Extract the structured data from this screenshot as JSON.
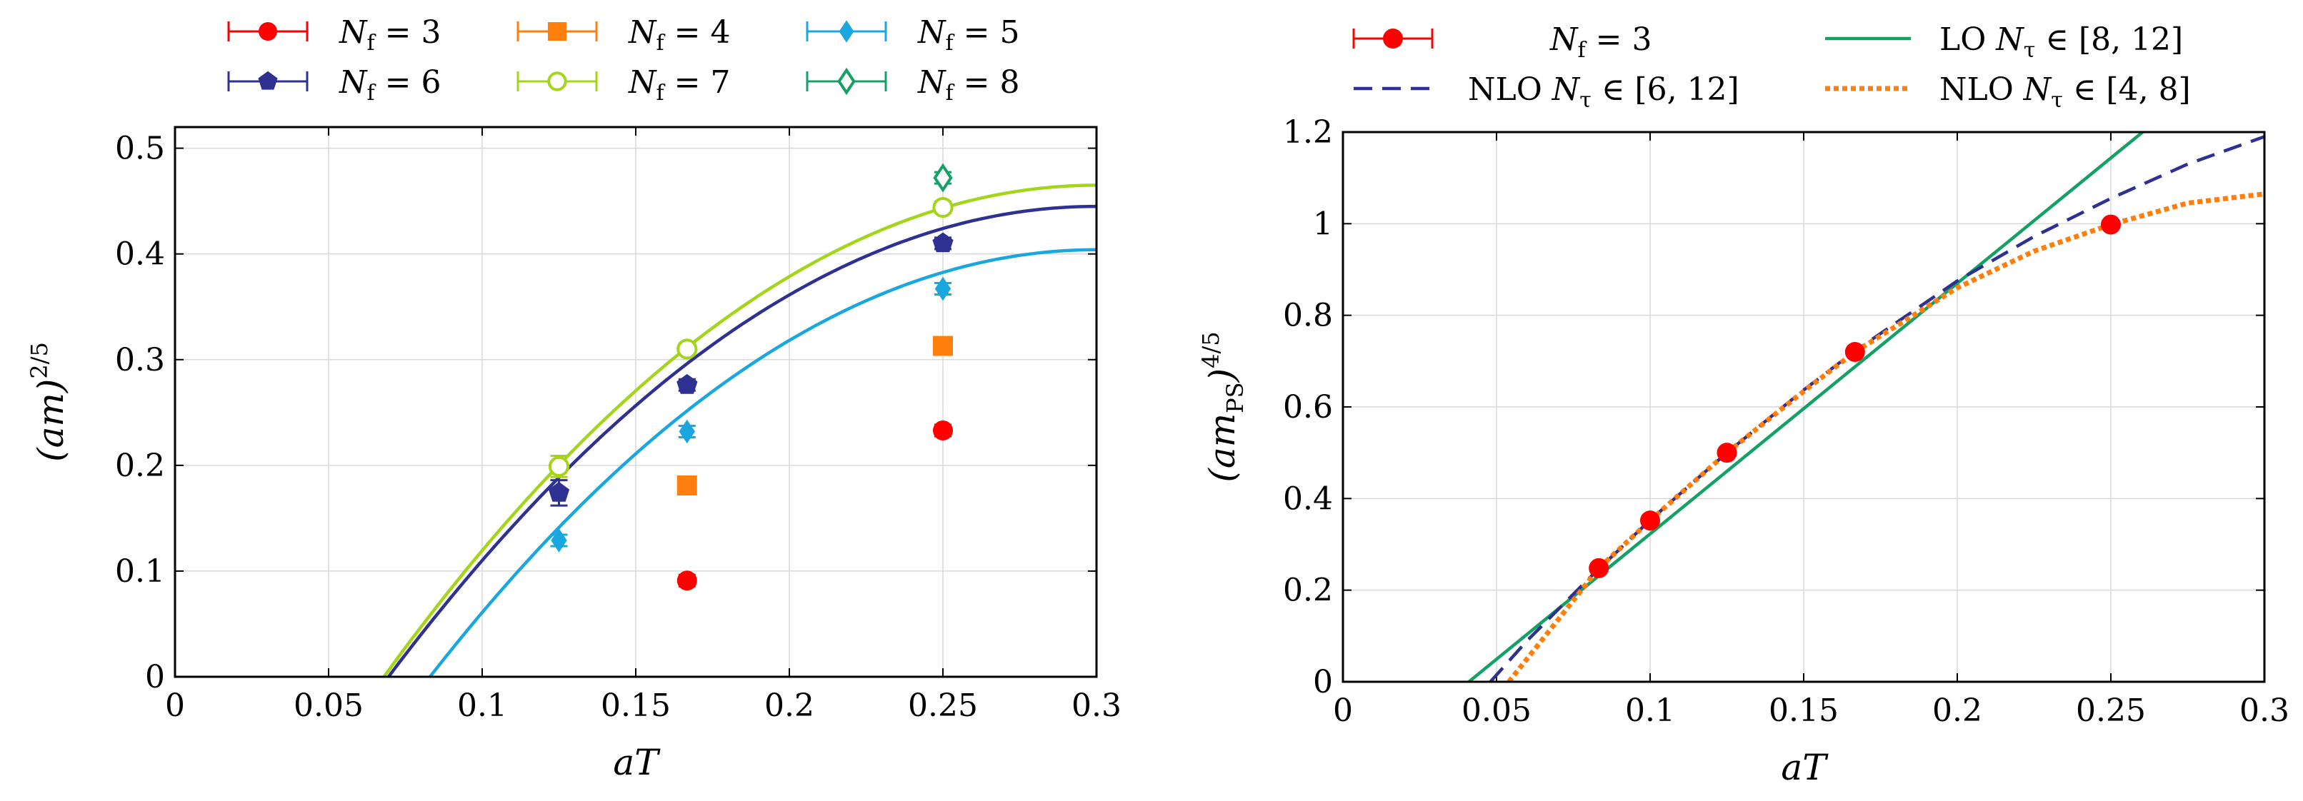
{
  "chart_data": [
    {
      "type": "scatter",
      "panel": "left",
      "xlabel": "aT",
      "ylabel": "(am)^{2/5}",
      "xlim": [
        0,
        0.3
      ],
      "ylim": [
        0,
        0.52
      ],
      "xticks": [
        0,
        0.05,
        0.1,
        0.15,
        0.2,
        0.25,
        0.3
      ],
      "xtick_labels": [
        "0",
        "0.05",
        "0.1",
        "0.15",
        "0.2",
        "0.25",
        "0.3"
      ],
      "yticks": [
        0,
        0.1,
        0.2,
        0.3,
        0.4,
        0.5
      ],
      "ytick_labels": [
        "0",
        "0.1",
        "0.2",
        "0.3",
        "0.4",
        "0.5"
      ],
      "legend": "top-outside, 3 columns",
      "series": [
        {
          "name": "N_f = 3",
          "label_main": "N",
          "label_sub": "f",
          "label_tail": " = 3",
          "color": "#ff0000",
          "marker": "circle",
          "x": [
            0.1667,
            0.25
          ],
          "y": [
            0.091,
            0.233
          ],
          "err": [
            0.004,
            0.004
          ]
        },
        {
          "name": "N_f = 4",
          "label_main": "N",
          "label_sub": "f",
          "label_tail": " = 4",
          "color": "#ff7f0e",
          "marker": "square",
          "x": [
            0.1667,
            0.25
          ],
          "y": [
            0.181,
            0.313
          ],
          "err": [
            0.004,
            0.004
          ]
        },
        {
          "name": "N_f = 5",
          "label_main": "N",
          "label_sub": "f",
          "label_tail": " = 5",
          "color": "#1aa7e0",
          "marker": "diamond",
          "x": [
            0.125,
            0.1667,
            0.25
          ],
          "y": [
            0.129,
            0.232,
            0.367
          ],
          "err": [
            0.004,
            0.004,
            0.004
          ],
          "fit_x0": 0.083,
          "fit_amp": 0.404
        },
        {
          "name": "N_f = 6",
          "label_main": "N",
          "label_sub": "f",
          "label_tail": " = 6",
          "color": "#2e3192",
          "marker": "pentagon",
          "x": [
            0.125,
            0.1667,
            0.25
          ],
          "y": [
            0.174,
            0.276,
            0.41
          ],
          "err": [
            0.012,
            0.004,
            0.004
          ],
          "fit_x0": 0.0695,
          "fit_amp": 0.445
        },
        {
          "name": "N_f = 7",
          "label_main": "N",
          "label_sub": "f",
          "label_tail": " = 7",
          "color": "#a4d51a",
          "marker": "open-circle",
          "x": [
            0.125,
            0.1667,
            0.25
          ],
          "y": [
            0.199,
            0.31,
            0.444
          ],
          "err": [
            0.01,
            0.004,
            0.004
          ],
          "fit_x0": 0.068,
          "fit_amp": 0.465
        },
        {
          "name": "N_f = 8",
          "label_main": "N",
          "label_sub": "f",
          "label_tail": " = 8",
          "color": "#15a065",
          "marker": "open-diamond",
          "x": [
            0.25
          ],
          "y": [
            0.472
          ],
          "err": [
            0.005
          ]
        }
      ]
    },
    {
      "type": "line",
      "panel": "right",
      "xlabel": "aT",
      "ylabel": "(am_PS)^{4/5}",
      "xlim": [
        0,
        0.3
      ],
      "ylim": [
        0,
        1.2
      ],
      "xticks": [
        0,
        0.05,
        0.1,
        0.15,
        0.2,
        0.25,
        0.3
      ],
      "xtick_labels": [
        "0",
        "0.05",
        "0.1",
        "0.15",
        "0.2",
        "0.25",
        "0.3"
      ],
      "yticks": [
        0,
        0.2,
        0.4,
        0.6,
        0.8,
        1.0,
        1.2
      ],
      "ytick_labels": [
        "0",
        "0.2",
        "0.4",
        "0.6",
        "0.8",
        "1",
        "1.2"
      ],
      "legend": "top-outside, 2 columns",
      "points": {
        "name": "N_f = 3",
        "label_main": "N",
        "label_sub": "f",
        "label_tail": " = 3",
        "color": "#ff0000",
        "x": [
          0.0833,
          0.1,
          0.125,
          0.1667,
          0.25
        ],
        "y": [
          0.248,
          0.352,
          0.5,
          0.72,
          0.998
        ]
      },
      "fits": [
        {
          "name": "LO N_tau in [8, 12]",
          "label_pre": "LO ",
          "label_main": "N",
          "label_sub": "τ",
          "label_tail": " ∈ [8, 12]",
          "color": "#15a065",
          "style": "solid",
          "x": [
            0.041,
            0.3
          ],
          "y": [
            0,
            1.417
          ]
        },
        {
          "name": "NLO N_tau in [6, 12]",
          "label_pre": "NLO ",
          "label_main": "N",
          "label_sub": "τ",
          "label_tail": " ∈ [6, 12]",
          "color": "#2e3192",
          "style": "dashed",
          "x": [
            0.048,
            0.06,
            0.08,
            0.1,
            0.125,
            0.15,
            0.1667,
            0.2,
            0.225,
            0.25,
            0.275,
            0.3
          ],
          "y": [
            0.0,
            0.09,
            0.225,
            0.353,
            0.5,
            0.637,
            0.722,
            0.875,
            0.972,
            1.055,
            1.13,
            1.19
          ]
        },
        {
          "name": "NLO N_tau in [4, 8]",
          "label_pre": "NLO ",
          "label_main": "N",
          "label_sub": "τ",
          "label_tail": " ∈ [4, 8]",
          "color": "#ff7f0e",
          "style": "dotted",
          "x": [
            0.054,
            0.07,
            0.0833,
            0.1,
            0.125,
            0.15,
            0.1667,
            0.2,
            0.225,
            0.25,
            0.275,
            0.3
          ],
          "y": [
            0.0,
            0.135,
            0.248,
            0.352,
            0.5,
            0.634,
            0.72,
            0.86,
            0.94,
            0.998,
            1.045,
            1.065
          ]
        }
      ]
    }
  ]
}
